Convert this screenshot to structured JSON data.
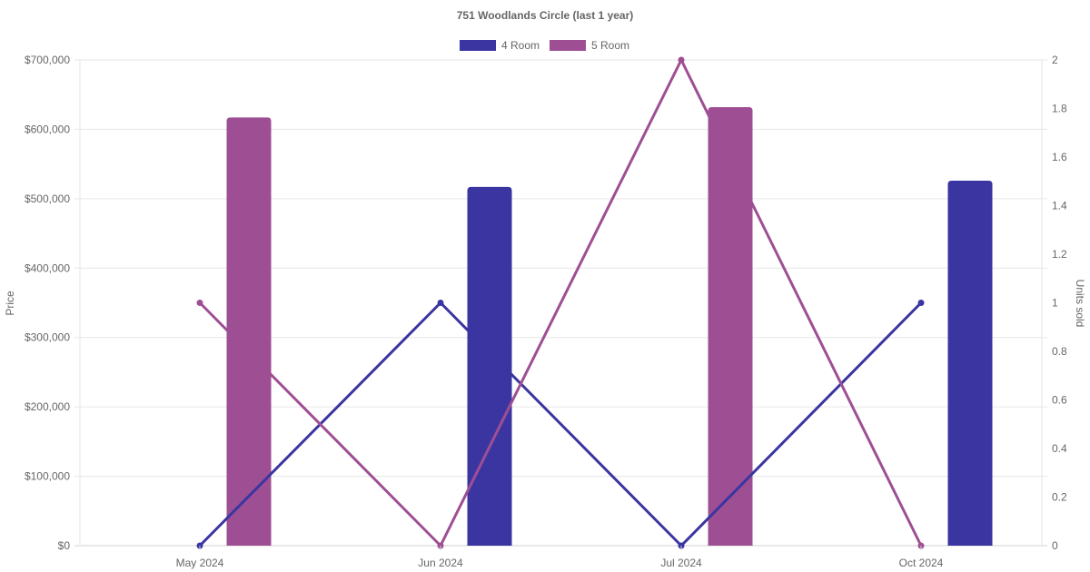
{
  "chart_data": {
    "type": "bar",
    "title": "751 Woodlands Circle (last 1 year)",
    "categories": [
      "May 2024",
      "Jun 2024",
      "Jul 2024",
      "Oct 2024"
    ],
    "y_left": {
      "label": "Price",
      "min": 0,
      "max": 700000,
      "step": 100000,
      "prefix": "$"
    },
    "y_right": {
      "label": "Units sold",
      "min": 0,
      "max": 2,
      "step": 0.2
    },
    "grid": true,
    "legend": {
      "position": "top-center",
      "entries": [
        "4 Room",
        "5 Room"
      ]
    },
    "series": [
      {
        "name": "4 Room",
        "color": "#3a35a0",
        "price": [
          null,
          517000,
          null,
          526000
        ],
        "units_sold": [
          0,
          1,
          0,
          1
        ]
      },
      {
        "name": "5 Room",
        "color": "#9e4f93",
        "price": [
          617000,
          null,
          632000,
          null
        ],
        "units_sold": [
          1,
          0,
          2,
          0
        ]
      }
    ]
  }
}
